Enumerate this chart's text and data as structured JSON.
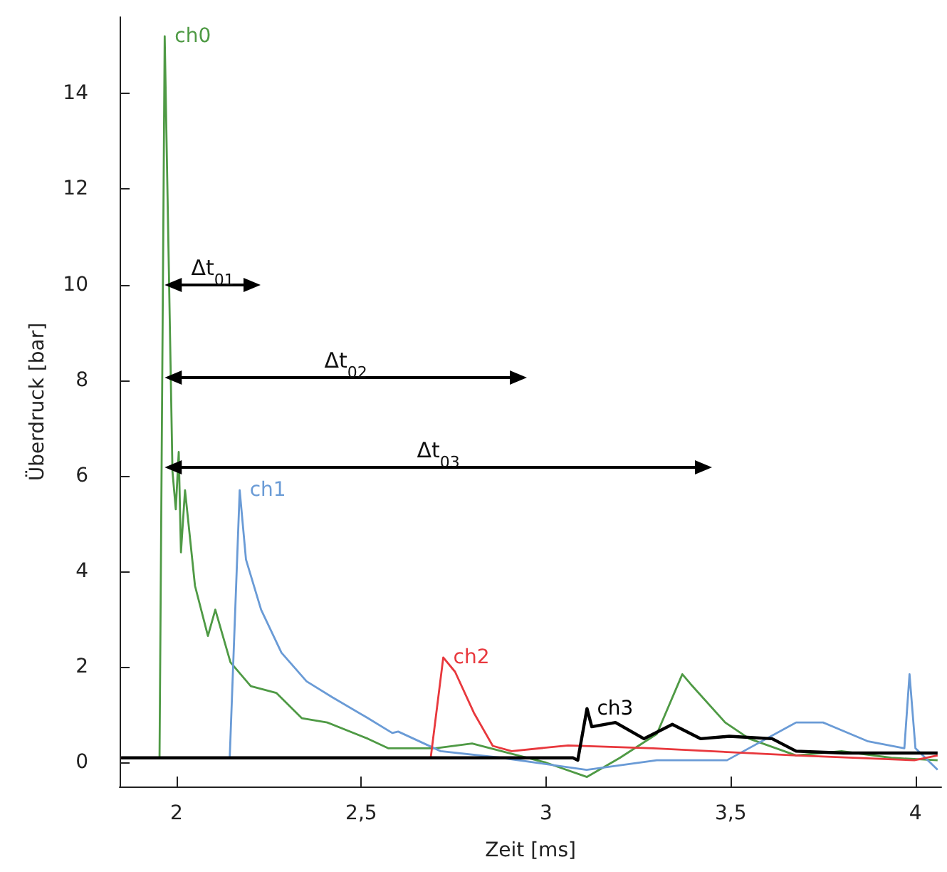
{
  "chart_data": {
    "type": "line",
    "xlabel": "Zeit [ms]",
    "ylabel": "Überdruck [bar]",
    "xlim": [
      1.846,
      4.07
    ],
    "ylim": [
      -0.5,
      15.6
    ],
    "xticks": [
      2,
      {
        "value": 2.5,
        "label": "2,5"
      },
      3,
      {
        "value": 3.5,
        "label": "3,5"
      },
      4
    ],
    "yticks": [
      0,
      2,
      4,
      6,
      8,
      10,
      12,
      14
    ],
    "grid": false,
    "legend": false,
    "marker": "none",
    "line_style": "solid",
    "series": [
      {
        "name": "ch0",
        "color": "#4f9a45",
        "x": [
          1.85,
          1.9,
          1.954,
          1.968,
          1.989,
          1.998,
          2.006,
          2.012,
          2.023,
          2.05,
          2.085,
          2.105,
          2.146,
          2.201,
          2.27,
          2.339,
          2.408,
          2.518,
          2.573,
          2.7,
          2.8,
          2.9,
          3.0,
          3.111,
          3.2,
          3.3,
          3.369,
          3.392,
          3.485,
          3.55,
          3.677,
          3.8,
          3.935,
          4.06
        ],
        "values": [
          0.1,
          0.1,
          0.1,
          15.2,
          6.1,
          5.3,
          6.5,
          4.4,
          5.7,
          3.7,
          2.65,
          3.2,
          2.1,
          1.6,
          1.46,
          0.93,
          0.84,
          0.5,
          0.3,
          0.3,
          0.4,
          0.2,
          0.0,
          -0.3,
          0.1,
          0.6,
          1.85,
          1.64,
          0.84,
          0.5,
          0.15,
          0.24,
          0.1,
          0.05
        ]
      },
      {
        "name": "ch1",
        "color": "#6a9bd6",
        "x": [
          1.85,
          2.0,
          2.144,
          2.171,
          2.188,
          2.229,
          2.284,
          2.352,
          2.421,
          2.518,
          2.584,
          2.6,
          2.715,
          2.88,
          3.11,
          3.3,
          3.49,
          3.677,
          3.75,
          3.87,
          3.97,
          3.984,
          4.0,
          4.06
        ],
        "values": [
          0.1,
          0.1,
          0.1,
          5.7,
          4.25,
          3.2,
          2.3,
          1.7,
          1.37,
          0.93,
          0.62,
          0.65,
          0.24,
          0.1,
          -0.15,
          0.05,
          0.05,
          0.84,
          0.84,
          0.45,
          0.3,
          1.85,
          0.3,
          -0.15
        ]
      },
      {
        "name": "ch2",
        "color": "#e8383d",
        "x": [
          1.85,
          2.3,
          2.688,
          2.722,
          2.754,
          2.805,
          2.856,
          2.907,
          3.06,
          3.29,
          3.677,
          3.997,
          4.06
        ],
        "values": [
          0.1,
          0.1,
          0.1,
          2.2,
          1.9,
          1.04,
          0.35,
          0.24,
          0.36,
          0.3,
          0.15,
          0.05,
          0.15
        ]
      },
      {
        "name": "ch3",
        "color": "#000000",
        "x": [
          1.85,
          2.5,
          3.073,
          3.086,
          3.111,
          3.124,
          3.188,
          3.265,
          3.342,
          3.419,
          3.496,
          3.612,
          3.677,
          3.805,
          3.933,
          4.06
        ],
        "values": [
          0.1,
          0.1,
          0.1,
          0.05,
          1.13,
          0.75,
          0.84,
          0.5,
          0.8,
          0.5,
          0.55,
          0.5,
          0.24,
          0.2,
          0.2,
          0.2
        ]
      }
    ],
    "annotations": [
      "Δt$_{01}$",
      "Δt$_{02}$",
      "Δt$_{03}$"
    ]
  }
}
